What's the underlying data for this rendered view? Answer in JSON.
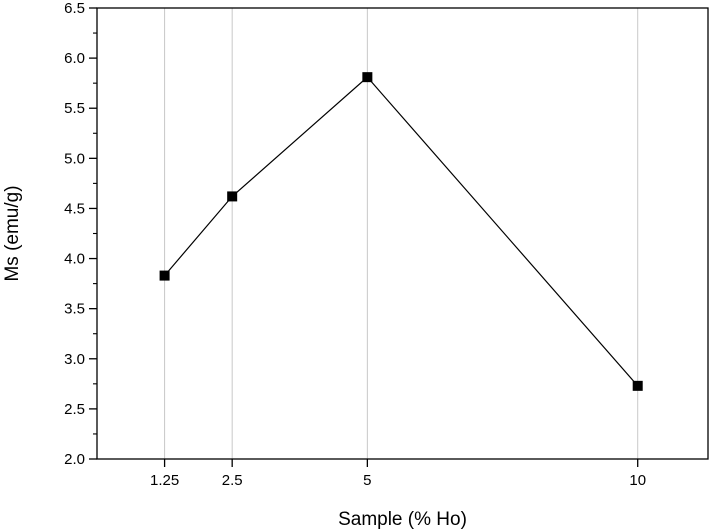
{
  "chart_data": {
    "type": "line",
    "title": "",
    "xlabel": "Sample (% Ho)",
    "ylabel": "Ms (emu/g)",
    "x": [
      1.25,
      2.5,
      5,
      10
    ],
    "x_tick_labels": [
      "1.25",
      "2.5",
      "5",
      "10"
    ],
    "series": [
      {
        "name": "Ms",
        "x": [
          1.25,
          2.5,
          5,
          10
        ],
        "values": [
          3.83,
          4.62,
          5.81,
          2.73
        ]
      }
    ],
    "ylim": [
      2.0,
      6.5
    ],
    "y_ticks": [
      2.0,
      2.5,
      3.0,
      3.5,
      4.0,
      4.5,
      5.0,
      5.5,
      6.0,
      6.5
    ],
    "y_tick_labels": [
      "2.0",
      "2.5",
      "3.0",
      "3.5",
      "4.0",
      "4.5",
      "5.0",
      "5.5",
      "6.0",
      "6.5"
    ],
    "vertical_gridlines_at_x": true,
    "marker": "square",
    "colors": {
      "line": "#000000",
      "marker": "#000000",
      "grid": "#c8c8c8",
      "axis": "#000000"
    }
  }
}
